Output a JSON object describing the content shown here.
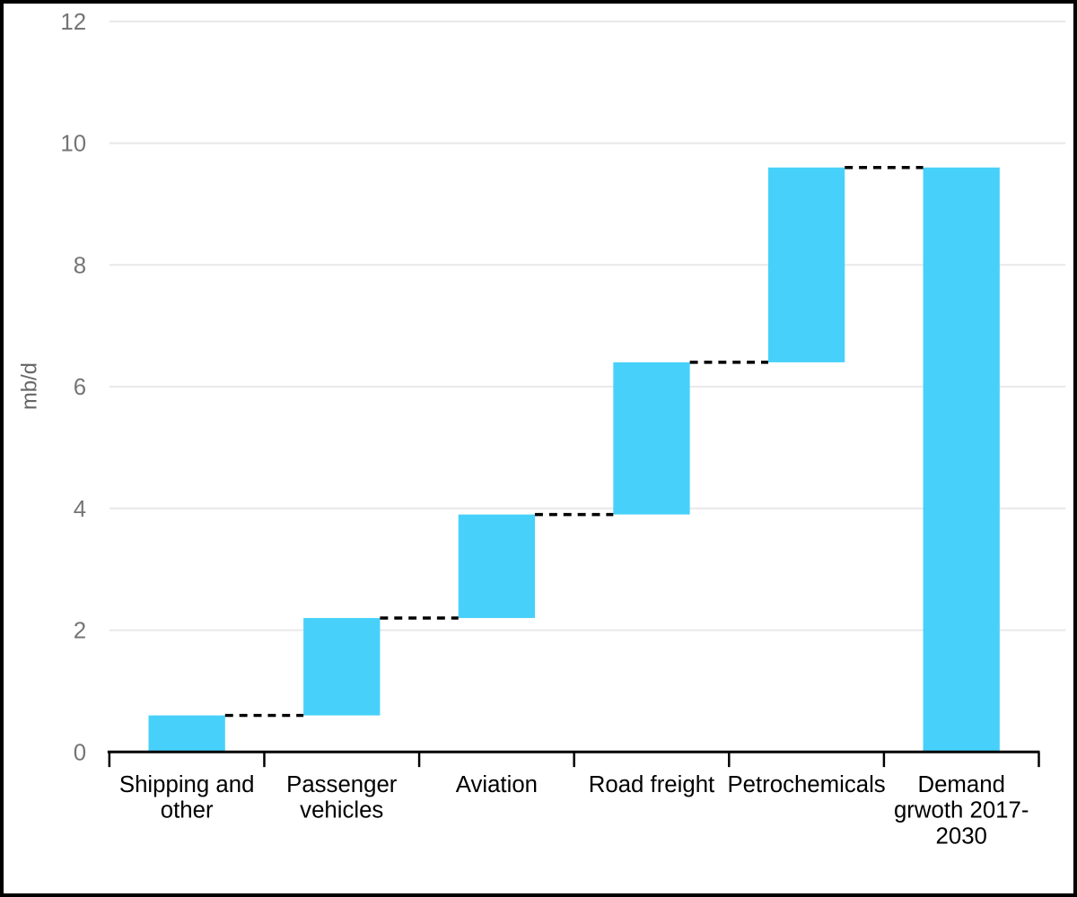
{
  "window": {
    "background": "#ffffff",
    "border_color": "#000000"
  },
  "chart_data": {
    "type": "bar",
    "subtype": "waterfall",
    "title": "",
    "xlabel": "",
    "ylabel": "mb/d",
    "categories": [
      "Shipping and other",
      "Passenger vehicles",
      "Aviation",
      "Road freight",
      "Petrochemicals",
      "Demand grwoth 2017-2030"
    ],
    "category_label_lines": [
      [
        "Shipping and",
        "other"
      ],
      [
        "Passenger",
        "vehicles"
      ],
      [
        "Aviation"
      ],
      [
        "Road freight"
      ],
      [
        "Petrochemicals"
      ],
      [
        "Demand",
        "grwoth 2017-",
        "2030"
      ]
    ],
    "values": [
      0.6,
      1.6,
      1.7,
      2.5,
      3.2
    ],
    "cumulative": [
      0.6,
      2.2,
      3.9,
      6.4,
      9.6
    ],
    "total_bar": {
      "label": "Demand grwoth 2017-2030",
      "value": 9.6
    },
    "y_ticks": [
      0,
      2,
      4,
      6,
      8,
      10,
      12
    ],
    "ylim": [
      0,
      12
    ],
    "grid": "horizontal",
    "legend": "none",
    "connector_style": "dashed",
    "colors": {
      "bar": "#47D1FA",
      "grid": "#E8E8E8",
      "tick_text": "#757575",
      "ylabel_text": "#666666",
      "category_text": "#000000",
      "axis": "#000000",
      "connector": "#000000"
    }
  }
}
